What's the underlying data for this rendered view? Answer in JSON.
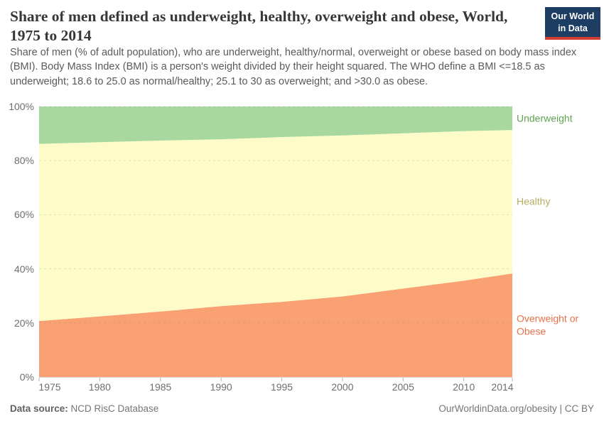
{
  "header": {
    "title": "Share of men defined as underweight, healthy, overweight and obese, World, 1975 to 2014",
    "subtitle": "Share of men (% of adult population), who are underweight, healthy/normal, overweight or obese based on body mass index (BMI). Body Mass Index (BMI) is a person's weight divided by their height squared. The WHO define a BMI <=18.5 as underweight; 18.6 to 25.0 as normal/healthy; 25.1 to 30 as overweight; and >30.0 as obese.",
    "logo": {
      "line1": "Our World",
      "line2": "in Data",
      "bg_color": "#1d3d63",
      "stripe_color": "#d13d32",
      "text_color": "#ffffff"
    }
  },
  "chart_data": {
    "type": "area",
    "stacked": true,
    "title": "Share of men defined as underweight, healthy, overweight and obese, World, 1975 to 2014",
    "xlabel": "",
    "ylabel": "",
    "ylim": [
      0,
      100
    ],
    "grid": "horizontal-dashed",
    "legend_position": "right-of-plot",
    "x": [
      1975,
      1980,
      1985,
      1990,
      1995,
      2000,
      2005,
      2010,
      2014
    ],
    "x_tick_labels": [
      "1975",
      "1980",
      "1985",
      "1990",
      "1995",
      "2000",
      "2005",
      "2010",
      "2014"
    ],
    "y_ticks": [
      0,
      20,
      40,
      60,
      80,
      100
    ],
    "y_tick_labels": [
      "0%",
      "20%",
      "40%",
      "60%",
      "80%",
      "100%"
    ],
    "series": [
      {
        "name": "Overweight or Obese",
        "color": "#faa173",
        "label_color": "#e8714a",
        "values": [
          20.7,
          22.4,
          24.2,
          26.2,
          27.8,
          29.8,
          32.7,
          35.6,
          38.3
        ]
      },
      {
        "name": "Healthy",
        "color": "#fdfcc8",
        "label_color": "#b4ae62",
        "values": [
          65.5,
          64.4,
          63.2,
          61.7,
          60.9,
          59.5,
          57.4,
          55.3,
          53.0
        ]
      },
      {
        "name": "Underweight",
        "color": "#a8d8a0",
        "label_color": "#5fa351",
        "values": [
          13.8,
          13.2,
          12.6,
          12.1,
          11.3,
          10.7,
          9.9,
          9.1,
          8.7
        ]
      }
    ]
  },
  "footer": {
    "source_label": "Data source:",
    "source_value": " NCD RisC Database",
    "credit": "OurWorldinData.org/obesity | CC BY"
  }
}
